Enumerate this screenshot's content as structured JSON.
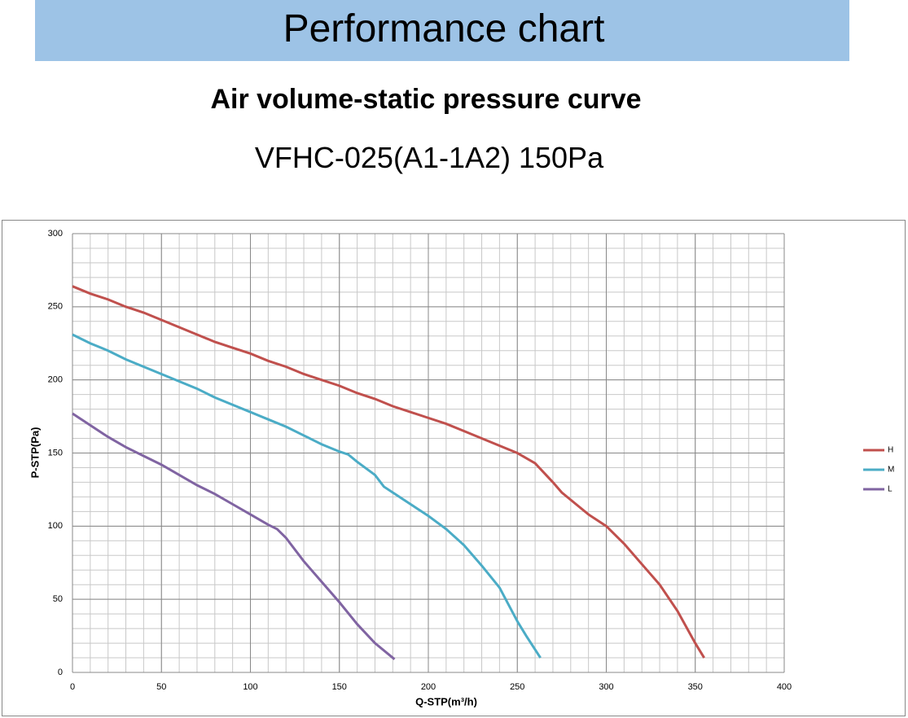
{
  "header": {
    "title": "Performance chart"
  },
  "chart_data": {
    "type": "line",
    "title": "Air volume-static pressure curve",
    "subtitle": "VFHC-025(A1-1A2) 150Pa",
    "x_label": "Q-STP(m³/h)",
    "y_label": "P-STP(Pa)",
    "xlim": [
      0,
      400
    ],
    "ylim": [
      0,
      300
    ],
    "xticks": [
      0,
      50,
      100,
      150,
      200,
      250,
      300,
      350,
      400
    ],
    "yticks": [
      0,
      50,
      100,
      150,
      200,
      250,
      300
    ],
    "xminor": 10,
    "yminor": 10,
    "grid": true,
    "legend": "right",
    "series": [
      {
        "name": "H",
        "color": "#c0504d",
        "x": [
          0,
          10,
          20,
          30,
          40,
          50,
          60,
          70,
          80,
          90,
          100,
          110,
          120,
          130,
          140,
          150,
          160,
          170,
          180,
          190,
          200,
          210,
          220,
          230,
          240,
          250,
          260,
          270,
          275,
          280,
          290,
          300,
          310,
          320,
          330,
          340,
          350,
          355
        ],
        "values": [
          264,
          259,
          255,
          250,
          246,
          241,
          236,
          231,
          226,
          222,
          218,
          213,
          209,
          204,
          200,
          196,
          191,
          187,
          182,
          178,
          174,
          170,
          165,
          160,
          155,
          150,
          143,
          130,
          123,
          118,
          108,
          100,
          88,
          74,
          60,
          42,
          20,
          10
        ]
      },
      {
        "name": "M",
        "color": "#4bacc6",
        "x": [
          0,
          10,
          20,
          30,
          40,
          50,
          60,
          70,
          80,
          90,
          100,
          110,
          120,
          130,
          140,
          150,
          155,
          160,
          170,
          175,
          180,
          190,
          200,
          210,
          220,
          230,
          240,
          250,
          255,
          263
        ],
        "values": [
          231,
          225,
          220,
          214,
          209,
          204,
          199,
          194,
          188,
          183,
          178,
          173,
          168,
          162,
          156,
          151,
          149,
          144,
          135,
          127,
          123,
          115,
          107,
          98,
          87,
          73,
          58,
          35,
          25,
          10
        ]
      },
      {
        "name": "L",
        "color": "#8064a2",
        "x": [
          0,
          10,
          20,
          30,
          40,
          50,
          60,
          70,
          80,
          90,
          100,
          110,
          115,
          120,
          130,
          140,
          150,
          160,
          170,
          181
        ],
        "values": [
          177,
          169,
          161,
          154,
          148,
          142,
          135,
          128,
          122,
          115,
          108,
          101,
          98,
          92,
          76,
          62,
          48,
          33,
          20,
          9
        ]
      }
    ]
  }
}
